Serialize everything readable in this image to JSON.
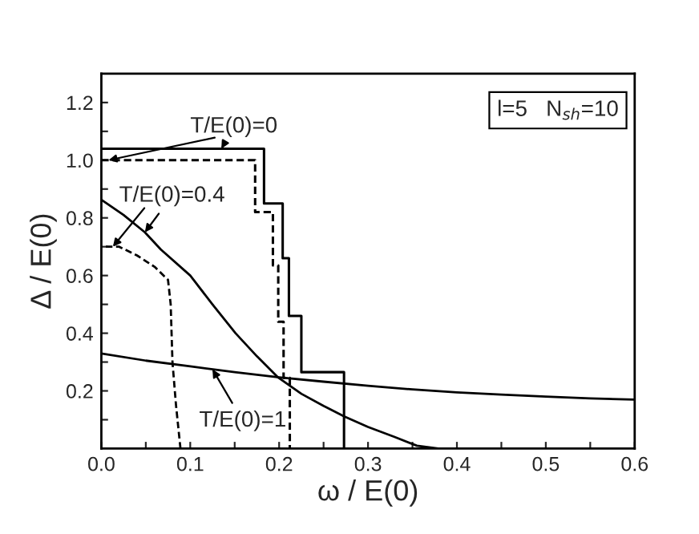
{
  "chart_data": {
    "type": "line",
    "xlabel": "ω / E(0)",
    "ylabel": "Δ / E(0)",
    "xlim": [
      0,
      0.6
    ],
    "ylim": [
      0,
      1.3
    ],
    "xticks": [
      {
        "value": 0.0,
        "label": "0.0"
      },
      {
        "value": 0.05,
        "label": null
      },
      0.1,
      {
        "value": 0.15,
        "label": null
      },
      0.2,
      {
        "value": 0.25,
        "label": null
      },
      0.3,
      {
        "value": 0.35,
        "label": null
      },
      0.4,
      {
        "value": 0.45,
        "label": null
      },
      0.5,
      {
        "value": 0.55,
        "label": null
      },
      0.6
    ],
    "yticks": [
      {
        "value": 0.1,
        "label": null
      },
      0.2,
      {
        "value": 0.3,
        "label": null
      },
      0.4,
      {
        "value": 0.5,
        "label": null
      },
      0.6,
      {
        "value": 0.7,
        "label": null
      },
      0.8,
      {
        "value": 0.9,
        "label": null
      },
      {
        "value": 1.0,
        "label": "1.0"
      },
      {
        "value": 1.1,
        "label": null
      },
      1.2
    ],
    "grid": false,
    "legend": false,
    "series": [
      {
        "type": "step",
        "color": "#000000",
        "line_style": "solid",
        "x": [
          0,
          0.183,
          0.204,
          0.211,
          0.225,
          0.273
        ],
        "values": [
          1.04,
          0.85,
          0.66,
          0.46,
          0.265,
          0.0
        ]
      },
      {
        "type": "step",
        "color": "#000000",
        "line_style": "dashed",
        "x": [
          0,
          0.173,
          0.193,
          0.199,
          0.205,
          0.212
        ],
        "values": [
          1.0,
          0.82,
          0.635,
          0.44,
          0.245,
          0.0
        ]
      },
      {
        "color": "#000000",
        "line_style": "solid",
        "x": [
          0,
          0.025,
          0.049,
          0.067,
          0.1,
          0.125,
          0.151,
          0.175,
          0.199,
          0.225,
          0.25,
          0.273,
          0.3,
          0.33,
          0.355,
          0.379
        ],
        "values": [
          0.863,
          0.81,
          0.75,
          0.69,
          0.6,
          0.5,
          0.4,
          0.32,
          0.246,
          0.19,
          0.148,
          0.112,
          0.075,
          0.04,
          0.01,
          0.0
        ]
      },
      {
        "color": "#000000",
        "line_style": "dashed",
        "x": [
          0.005,
          0.02,
          0.04,
          0.06,
          0.075,
          0.078,
          0.08,
          0.084,
          0.089
        ],
        "values": [
          0.7,
          0.7,
          0.67,
          0.63,
          0.585,
          0.5,
          0.3,
          0.15,
          0.0
        ]
      },
      {
        "color": "#000000",
        "line_style": "solid",
        "x": [
          0,
          0.05,
          0.1,
          0.15,
          0.2,
          0.25,
          0.3,
          0.35,
          0.4,
          0.45,
          0.5,
          0.55,
          0.6
        ],
        "values": [
          0.33,
          0.305,
          0.285,
          0.265,
          0.247,
          0.232,
          0.218,
          0.205,
          0.195,
          0.187,
          0.18,
          0.174,
          0.17
        ]
      }
    ],
    "annotations": [
      {
        "text": "T/E(0)=0",
        "x": 0.135,
        "y": 1.04
      },
      {
        "text": "T/E(0)=0.4",
        "x": 0.049,
        "y": 0.75
      },
      {
        "text": "T/E(0)=1",
        "x": 0.125,
        "y": 0.275
      },
      "l=5   N$_{sh}$=10"
    ]
  }
}
